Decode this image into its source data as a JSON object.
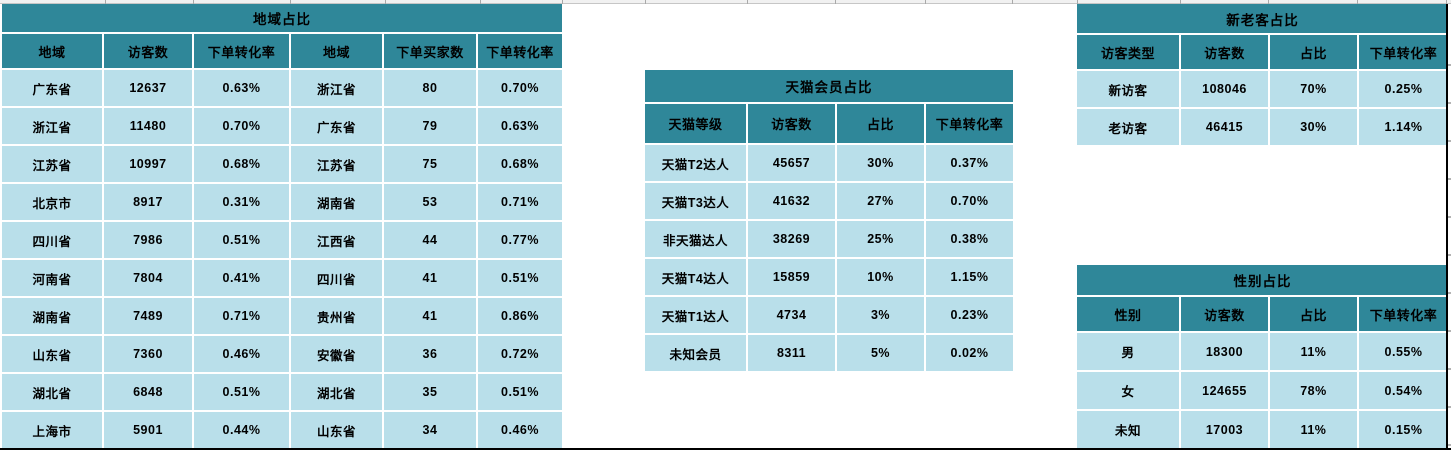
{
  "colors": {
    "header_teal": "#2F8799",
    "row_blue": "#B9DFEA",
    "border_black": "#000000"
  },
  "tables": {
    "region": {
      "title": "地域占比",
      "headers": [
        "地域",
        "访客数",
        "下单转化率",
        "地域",
        "下单买家数",
        "下单转化率"
      ],
      "rows": [
        [
          "广东省",
          "12637",
          "0.63%",
          "浙江省",
          "80",
          "0.70%"
        ],
        [
          "浙江省",
          "11480",
          "0.70%",
          "广东省",
          "79",
          "0.63%"
        ],
        [
          "江苏省",
          "10997",
          "0.68%",
          "江苏省",
          "75",
          "0.68%"
        ],
        [
          "北京市",
          "8917",
          "0.31%",
          "湖南省",
          "53",
          "0.71%"
        ],
        [
          "四川省",
          "7986",
          "0.51%",
          "江西省",
          "44",
          "0.77%"
        ],
        [
          "河南省",
          "7804",
          "0.41%",
          "四川省",
          "41",
          "0.51%"
        ],
        [
          "湖南省",
          "7489",
          "0.71%",
          "贵州省",
          "41",
          "0.86%"
        ],
        [
          "山东省",
          "7360",
          "0.46%",
          "安徽省",
          "36",
          "0.72%"
        ],
        [
          "湖北省",
          "6848",
          "0.51%",
          "湖北省",
          "35",
          "0.51%"
        ],
        [
          "上海市",
          "5901",
          "0.44%",
          "山东省",
          "34",
          "0.46%"
        ]
      ]
    },
    "tmall": {
      "title": "天猫会员占比",
      "headers": [
        "天猫等级",
        "访客数",
        "占比",
        "下单转化率"
      ],
      "rows": [
        [
          "天猫T2达人",
          "45657",
          "30%",
          "0.37%"
        ],
        [
          "天猫T3达人",
          "41632",
          "27%",
          "0.70%"
        ],
        [
          "非天猫达人",
          "38269",
          "25%",
          "0.38%"
        ],
        [
          "天猫T4达人",
          "15859",
          "10%",
          "1.15%"
        ],
        [
          "天猫T1达人",
          "4734",
          "3%",
          "0.23%"
        ],
        [
          "未知会员",
          "8311",
          "5%",
          "0.02%"
        ]
      ]
    },
    "visitor_type": {
      "title": "新老客占比",
      "headers": [
        "访客类型",
        "访客数",
        "占比",
        "下单转化率"
      ],
      "rows": [
        [
          "新访客",
          "108046",
          "70%",
          "0.25%"
        ],
        [
          "老访客",
          "46415",
          "30%",
          "1.14%"
        ]
      ]
    },
    "gender": {
      "title": "性别占比",
      "headers": [
        "性别",
        "访客数",
        "占比",
        "下单转化率"
      ],
      "rows": [
        [
          "男",
          "18300",
          "11%",
          "0.55%"
        ],
        [
          "女",
          "124655",
          "78%",
          "0.54%"
        ],
        [
          "未知",
          "17003",
          "11%",
          "0.15%"
        ]
      ]
    }
  }
}
